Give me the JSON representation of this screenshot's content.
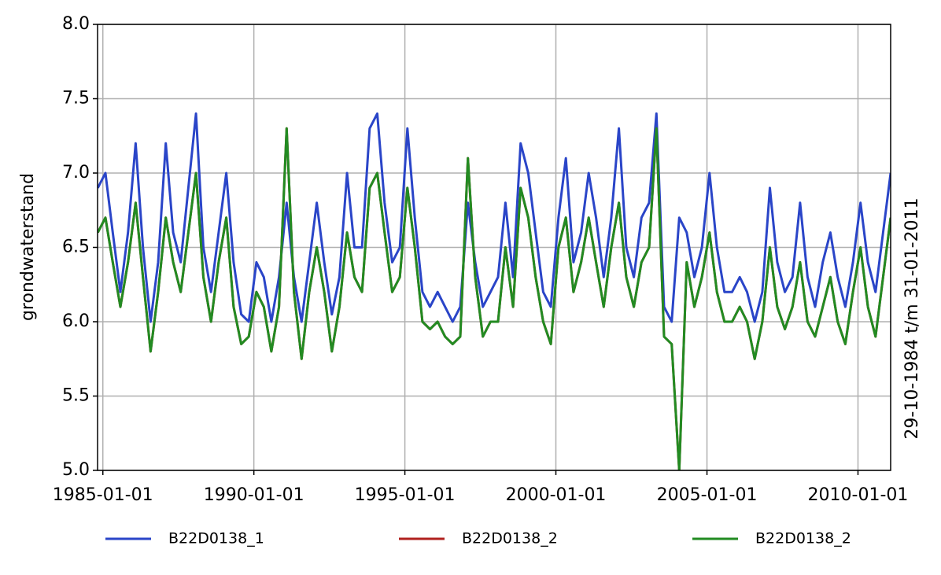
{
  "chart_data": {
    "type": "line",
    "ylabel": "grondwaterstand",
    "right_label": "29-10-1984 t/m 31-01-2011",
    "xlim": [
      "1984-10-29",
      "2011-01-31"
    ],
    "xticks": [
      "1985-01-01",
      "1990-01-01",
      "1995-01-01",
      "2000-01-01",
      "2005-01-01",
      "2010-01-01"
    ],
    "ylim": [
      5,
      8
    ],
    "yticks": [
      {
        "value": 5,
        "label": "5.0"
      },
      5.5,
      {
        "value": 6,
        "label": "6.0"
      },
      6.5,
      {
        "value": 7,
        "label": "7.0"
      },
      7.5,
      {
        "value": 8,
        "label": "8.0"
      }
    ],
    "grid": true,
    "legend": "bottom",
    "x": [
      "1984-11-01",
      "1985-02-01",
      "1985-05-01",
      "1985-08-01",
      "1985-11-01",
      "1986-02-01",
      "1986-05-01",
      "1986-08-01",
      "1986-11-01",
      "1987-02-01",
      "1987-05-01",
      "1987-08-01",
      "1987-11-01",
      "1988-02-01",
      "1988-05-01",
      "1988-08-01",
      "1988-11-01",
      "1989-02-01",
      "1989-05-01",
      "1989-08-01",
      "1989-11-01",
      "1990-02-01",
      "1990-05-01",
      "1990-08-01",
      "1990-11-01",
      "1991-02-01",
      "1991-05-01",
      "1991-08-01",
      "1991-11-01",
      "1992-02-01",
      "1992-05-01",
      "1992-08-01",
      "1992-11-01",
      "1993-02-01",
      "1993-05-01",
      "1993-08-01",
      "1993-11-01",
      "1994-02-01",
      "1994-05-01",
      "1994-08-01",
      "1994-11-01",
      "1995-02-01",
      "1995-05-01",
      "1995-08-01",
      "1995-11-01",
      "1996-02-01",
      "1996-05-01",
      "1996-08-01",
      "1996-11-01",
      "1997-02-01",
      "1997-05-01",
      "1997-08-01",
      "1997-11-01",
      "1998-02-01",
      "1998-05-01",
      "1998-08-01",
      "1998-11-01",
      "1999-02-01",
      "1999-05-01",
      "1999-08-01",
      "1999-11-01",
      "2000-02-01",
      "2000-05-01",
      "2000-08-01",
      "2000-11-01",
      "2001-02-01",
      "2001-05-01",
      "2001-08-01",
      "2001-11-01",
      "2002-02-01",
      "2002-05-01",
      "2002-08-01",
      "2002-11-01",
      "2003-02-01",
      "2003-05-01",
      "2003-08-01",
      "2003-11-01",
      "2004-02-01",
      "2004-05-01",
      "2004-08-01",
      "2004-11-01",
      "2005-02-01",
      "2005-05-01",
      "2005-08-01",
      "2005-11-01",
      "2006-02-01",
      "2006-05-01",
      "2006-08-01",
      "2006-11-01",
      "2007-02-01",
      "2007-05-01",
      "2007-08-01",
      "2007-11-01",
      "2008-02-01",
      "2008-05-01",
      "2008-08-01",
      "2008-11-01",
      "2009-02-01",
      "2009-05-01",
      "2009-08-01",
      "2009-11-01",
      "2010-02-01",
      "2010-05-01",
      "2010-08-01",
      "2010-11-01",
      "2011-01-31"
    ],
    "series": [
      {
        "name": "B22D0138_1",
        "color": "#2a45c8",
        "values": [
          6.9,
          7.0,
          6.6,
          6.2,
          6.6,
          7.2,
          6.5,
          6.0,
          6.4,
          7.2,
          6.6,
          6.4,
          6.9,
          7.4,
          6.5,
          6.2,
          6.6,
          7.0,
          6.4,
          6.05,
          6.0,
          6.4,
          6.3,
          6.0,
          6.3,
          6.8,
          6.3,
          6.0,
          6.4,
          6.8,
          6.4,
          6.05,
          6.3,
          7.0,
          6.5,
          6.5,
          7.3,
          7.4,
          6.8,
          6.4,
          6.5,
          7.3,
          6.7,
          6.2,
          6.1,
          6.2,
          6.1,
          6.0,
          6.1,
          6.8,
          6.4,
          6.1,
          6.2,
          6.3,
          6.8,
          6.3,
          7.2,
          7.0,
          6.6,
          6.2,
          6.1,
          6.7,
          7.1,
          6.4,
          6.6,
          7.0,
          6.7,
          6.3,
          6.7,
          7.3,
          6.5,
          6.3,
          6.7,
          6.8,
          7.4,
          6.1,
          6.0,
          6.7,
          6.6,
          6.3,
          6.5,
          7.0,
          6.5,
          6.2,
          6.2,
          6.3,
          6.2,
          6.0,
          6.2,
          6.9,
          6.4,
          6.2,
          6.3,
          6.8,
          6.3,
          6.1,
          6.4,
          6.6,
          6.3,
          6.1,
          6.4,
          6.8,
          6.4,
          6.2,
          6.6,
          7.0
        ]
      },
      {
        "name": "B22D0138_2",
        "color": "#b0201e",
        "values": [
          6.6,
          6.7,
          6.4,
          6.1,
          6.4,
          6.8,
          6.3,
          5.8,
          6.2,
          6.7,
          6.4,
          6.2,
          6.6,
          7.0,
          6.3,
          6.0,
          6.4,
          6.7,
          6.1,
          5.85,
          5.9,
          6.2,
          6.1,
          5.8,
          6.1,
          7.3,
          6.2,
          5.75,
          6.2,
          6.5,
          6.2,
          5.8,
          6.1,
          6.6,
          6.3,
          6.2,
          6.9,
          7.0,
          6.6,
          6.2,
          6.3,
          6.9,
          6.5,
          6.0,
          5.95,
          6.0,
          5.9,
          5.85,
          5.9,
          7.1,
          6.3,
          5.9,
          6.0,
          6.0,
          6.5,
          6.1,
          6.9,
          6.7,
          6.3,
          6.0,
          5.85,
          6.5,
          6.7,
          6.2,
          6.4,
          6.7,
          6.4,
          6.1,
          6.5,
          6.8,
          6.3,
          6.1,
          6.4,
          6.5,
          7.3,
          5.9,
          5.85,
          5.0,
          6.4,
          6.1,
          6.3,
          6.6,
          6.2,
          6.0,
          6.0,
          6.1,
          6.0,
          5.75,
          6.0,
          6.5,
          6.1,
          5.95,
          6.1,
          6.4,
          6.0,
          5.9,
          6.1,
          6.3,
          6.0,
          5.85,
          6.2,
          6.5,
          6.1,
          5.9,
          6.3,
          6.7
        ]
      },
      {
        "name": "B22D0138_2",
        "color": "#228b22",
        "values": [
          6.6,
          6.7,
          6.4,
          6.1,
          6.4,
          6.8,
          6.3,
          5.8,
          6.2,
          6.7,
          6.4,
          6.2,
          6.6,
          7.0,
          6.3,
          6.0,
          6.4,
          6.7,
          6.1,
          5.85,
          5.9,
          6.2,
          6.1,
          5.8,
          6.1,
          7.3,
          6.2,
          5.75,
          6.2,
          6.5,
          6.2,
          5.8,
          6.1,
          6.6,
          6.3,
          6.2,
          6.9,
          7.0,
          6.6,
          6.2,
          6.3,
          6.9,
          6.5,
          6.0,
          5.95,
          6.0,
          5.9,
          5.85,
          5.9,
          7.1,
          6.3,
          5.9,
          6.0,
          6.0,
          6.5,
          6.1,
          6.9,
          6.7,
          6.3,
          6.0,
          5.85,
          6.5,
          6.7,
          6.2,
          6.4,
          6.7,
          6.4,
          6.1,
          6.5,
          6.8,
          6.3,
          6.1,
          6.4,
          6.5,
          7.3,
          5.9,
          5.85,
          5.0,
          6.4,
          6.1,
          6.3,
          6.6,
          6.2,
          6.0,
          6.0,
          6.1,
          6.0,
          5.75,
          6.0,
          6.5,
          6.1,
          5.95,
          6.1,
          6.4,
          6.0,
          5.9,
          6.1,
          6.3,
          6.0,
          5.85,
          6.2,
          6.5,
          6.1,
          5.9,
          6.3,
          6.7
        ]
      }
    ]
  }
}
